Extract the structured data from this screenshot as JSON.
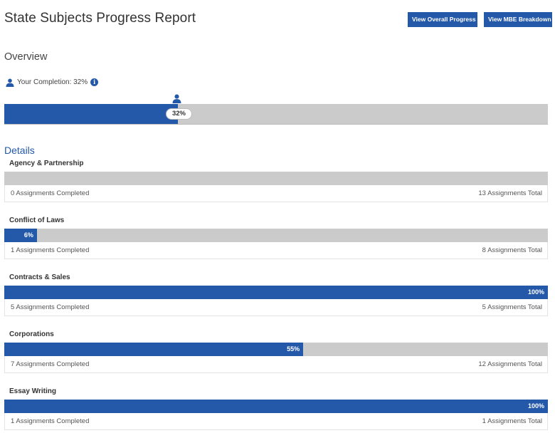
{
  "header": {
    "title": "State Subjects Progress Report",
    "overall_button": "View Overall Progress",
    "mbe_button": "View MBE Breakdown"
  },
  "overview": {
    "heading": "Overview",
    "completion_label": "Your Completion: 32%",
    "info_glyph": "i",
    "completion_fraction": 0.32,
    "bubble_label": "32%"
  },
  "details": {
    "heading": "Details",
    "subjects": [
      {
        "name": "Agency & Partnership",
        "percent": 0,
        "percent_label": "",
        "completed": "0 Assignments Completed",
        "total": "13 Assignments Total"
      },
      {
        "name": "Conflict of Laws",
        "percent": 6,
        "percent_label": "6%",
        "completed": "1 Assignments Completed",
        "total": "8 Assignments Total"
      },
      {
        "name": "Contracts & Sales",
        "percent": 100,
        "percent_label": "100%",
        "completed": "5 Assignments Completed",
        "total": "5 Assignments Total"
      },
      {
        "name": "Corporations",
        "percent": 55,
        "percent_label": "55%",
        "completed": "7 Assignments Completed",
        "total": "12 Assignments Total"
      },
      {
        "name": "Essay Writing",
        "percent": 100,
        "percent_label": "100%",
        "completed": "1 Assignments Completed",
        "total": "1 Assignments Total"
      }
    ]
  },
  "colors": {
    "accent": "#2458a8",
    "track": "#cbcbcb"
  },
  "icons": {
    "user": "user-icon",
    "info": "info-icon"
  }
}
